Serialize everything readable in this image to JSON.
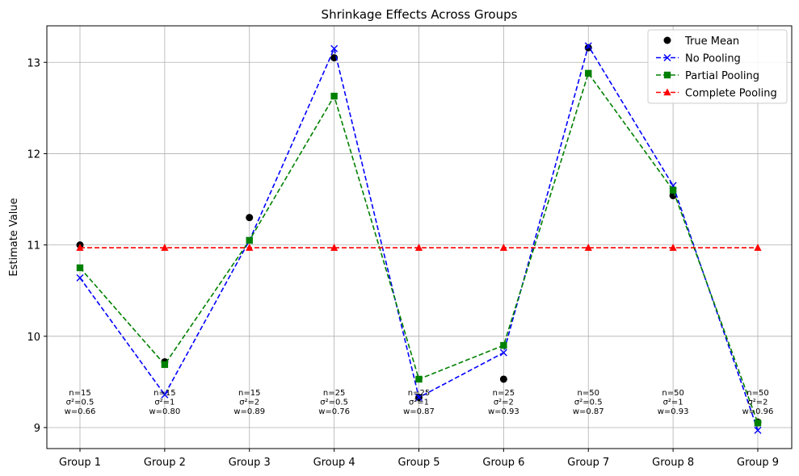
{
  "chart_data": {
    "type": "line",
    "title": "Shrinkage Effects Across Groups",
    "xlabel": "",
    "ylabel": "Estimate Value",
    "categories": [
      "Group 1",
      "Group 2",
      "Group 3",
      "Group 4",
      "Group 5",
      "Group 6",
      "Group 7",
      "Group 8",
      "Group 9"
    ],
    "ylim": [
      8.77,
      13.4
    ],
    "yticks": [
      9,
      10,
      11,
      12,
      13
    ],
    "grid": true,
    "legend_position": "top-right",
    "series": [
      {
        "name": "True Mean",
        "color": "#000000",
        "marker": "circle",
        "line": "none",
        "values": [
          11.0,
          9.72,
          11.3,
          13.05,
          9.33,
          9.53,
          13.16,
          11.54,
          9.06
        ]
      },
      {
        "name": "No Pooling",
        "color": "#0000ff",
        "marker": "x",
        "line": "dashed",
        "values": [
          10.64,
          9.36,
          11.05,
          13.15,
          9.33,
          9.82,
          13.18,
          11.65,
          8.97
        ]
      },
      {
        "name": "Partial Pooling",
        "color": "#008000",
        "marker": "square",
        "line": "dashed",
        "values": [
          10.75,
          9.69,
          11.05,
          12.63,
          9.53,
          9.9,
          12.88,
          11.6,
          9.05
        ]
      },
      {
        "name": "Complete Pooling",
        "color": "#ff0000",
        "marker": "triangle",
        "line": "dashed",
        "values": [
          10.97,
          10.97,
          10.97,
          10.97,
          10.97,
          10.97,
          10.97,
          10.97,
          10.97
        ]
      }
    ],
    "annotations": [
      {
        "n": "n=15",
        "var": "σ²=0.5",
        "w": "w=0.66"
      },
      {
        "n": "n=15",
        "var": "σ²=1",
        "w": "w=0.80"
      },
      {
        "n": "n=15",
        "var": "σ²=2",
        "w": "w=0.89"
      },
      {
        "n": "n=25",
        "var": "σ²=0.5",
        "w": "w=0.76"
      },
      {
        "n": "n=25",
        "var": "σ²=1",
        "w": "w=0.87"
      },
      {
        "n": "n=25",
        "var": "σ²=2",
        "w": "w=0.93"
      },
      {
        "n": "n=50",
        "var": "σ²=0.5",
        "w": "w=0.87"
      },
      {
        "n": "n=50",
        "var": "σ²=1",
        "w": "w=0.93"
      },
      {
        "n": "n=50",
        "var": "σ²=2",
        "w": "w=0.96"
      }
    ],
    "annotation_y": 9.23
  }
}
